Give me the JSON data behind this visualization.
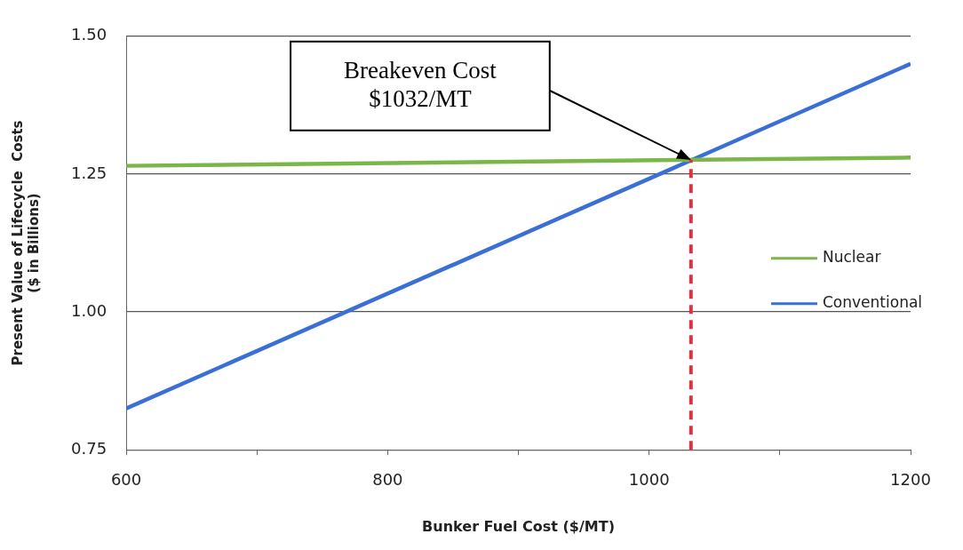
{
  "chart_data": {
    "type": "line",
    "xlabel": "Bunker Fuel Cost ($/MT)",
    "ylabel": "Present Value of Lifecycle  Costs\n($ in Billions)",
    "x": [
      600,
      1200
    ],
    "series": [
      {
        "name": "Nuclear",
        "color": "#7ab648",
        "values": [
          1.265,
          1.28
        ]
      },
      {
        "name": "Conventional",
        "color": "#3a6fd8",
        "values": [
          0.825,
          1.45
        ]
      }
    ],
    "xlim": [
      600,
      1200
    ],
    "xticks": [
      600,
      {
        "value": 700,
        "label": null
      },
      800,
      {
        "value": 900,
        "label": null
      },
      1000,
      {
        "value": 1100,
        "label": null
      },
      1200
    ],
    "ylim": [
      0.75,
      1.5
    ],
    "yticks": [
      {
        "value": 0.75,
        "label": "0.75"
      },
      {
        "value": 1,
        "label": "1.00"
      },
      {
        "value": 1.25,
        "label": "1.25"
      },
      {
        "value": 1.5,
        "label": "1.50"
      }
    ],
    "ref_lines": [
      {
        "axis": "x",
        "value": 1032,
        "color": "#d9333f",
        "line_style": "dashed"
      }
    ],
    "annotations": [
      "Breakeven Cost\n$1032/MT"
    ],
    "grid": "y",
    "legend": "right",
    "marker": "none",
    "line_style": "solid"
  }
}
